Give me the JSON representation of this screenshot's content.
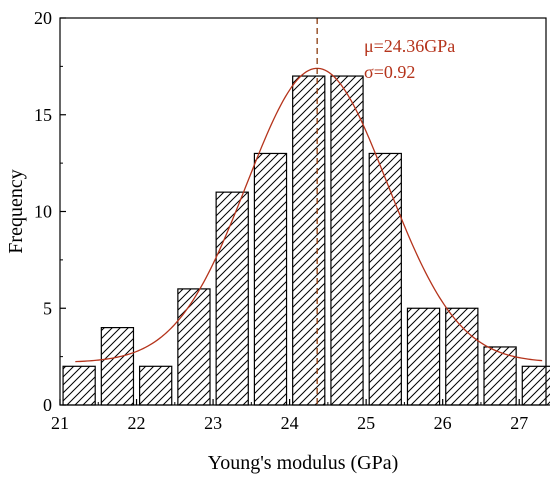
{
  "chart_data": {
    "type": "bar",
    "xlabel": "Young's modulus (GPa)",
    "ylabel": "Frequency",
    "xlim": [
      21,
      27.35
    ],
    "ylim": [
      0,
      20
    ],
    "x_ticks": [
      "21",
      "22",
      "23",
      "24",
      "25",
      "26",
      "27"
    ],
    "y_ticks": [
      "0",
      "5",
      "10",
      "15",
      "20"
    ],
    "bin_width": 0.5,
    "bins": [
      {
        "x": 21.25,
        "value": 2
      },
      {
        "x": 21.75,
        "value": 4
      },
      {
        "x": 22.25,
        "value": 2
      },
      {
        "x": 22.75,
        "value": 6
      },
      {
        "x": 23.25,
        "value": 11
      },
      {
        "x": 23.75,
        "value": 13
      },
      {
        "x": 24.25,
        "value": 17
      },
      {
        "x": 24.75,
        "value": 17
      },
      {
        "x": 25.25,
        "value": 13
      },
      {
        "x": 25.75,
        "value": 5
      },
      {
        "x": 26.25,
        "value": 5
      },
      {
        "x": 26.75,
        "value": 3
      },
      {
        "x": 27.25,
        "value": 2
      }
    ],
    "fit_curve": {
      "type": "normal",
      "mean": 24.36,
      "sigma": 0.92,
      "baseline": 2.2,
      "peak": 17.4,
      "x_range": [
        21.2,
        27.3
      ],
      "color": "#b5341c"
    },
    "mean_line": {
      "x": 24.36,
      "color": "#8b3a0f",
      "style": "dashed"
    },
    "annotations": [
      "μ=24.36GPa",
      "σ=0.92"
    ],
    "bar_fill": "hatched",
    "grid": false
  }
}
